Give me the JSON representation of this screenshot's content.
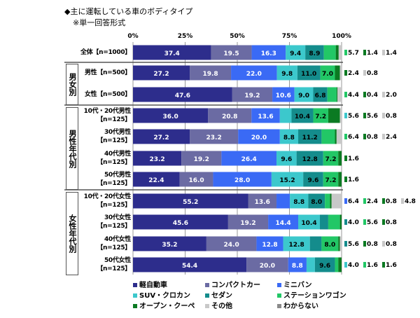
{
  "chart_data": {
    "type": "bar",
    "orientation": "horizontal-stacked-100",
    "title": "◆主に運転している車のボディタイプ",
    "subtitle": "※単一回答形式",
    "xlim": [
      0,
      100
    ],
    "xticks": [
      "0%",
      "25%",
      "50%",
      "75%",
      "100%"
    ],
    "grid": true,
    "legend_position": "bottom",
    "groups": [
      {
        "label": "",
        "rows": [
          0
        ]
      },
      {
        "label": "男女別",
        "rows": [
          1,
          2
        ]
      },
      {
        "label": "男性年代別",
        "rows": [
          3,
          4,
          5,
          6
        ]
      },
      {
        "label": "女性年代別",
        "rows": [
          7,
          8,
          9,
          10
        ]
      }
    ],
    "categories": [
      [
        "全体【n=1000】"
      ],
      [
        "男性【n=500】"
      ],
      [
        "女性【n=500】"
      ],
      [
        "10代・20代男性",
        "【n=125】"
      ],
      [
        "30代男性",
        "【n=125】"
      ],
      [
        "40代男性",
        "【n=125】"
      ],
      [
        "50代男性",
        "【n=125】"
      ],
      [
        "10代・20代女性",
        "【n=125】"
      ],
      [
        "30代女性",
        "【n=125】"
      ],
      [
        "40代女性",
        "【n=125】"
      ],
      [
        "50代女性",
        "【n=125】"
      ]
    ],
    "series": [
      {
        "name": "軽自動車",
        "color": "#2d2d8c",
        "values": [
          37.4,
          27.2,
          47.6,
          36.0,
          27.2,
          23.2,
          22.4,
          55.2,
          45.6,
          35.2,
          54.4
        ]
      },
      {
        "name": "コンパクトカー",
        "color": "#6b6ba3",
        "values": [
          19.5,
          19.8,
          19.2,
          20.8,
          23.2,
          19.2,
          16.0,
          13.6,
          19.2,
          24.0,
          20.0
        ]
      },
      {
        "name": "ミニバン",
        "color": "#3a6af5",
        "values": [
          16.3,
          22.0,
          10.6,
          13.6,
          20.0,
          26.4,
          28.0,
          6.4,
          14.4,
          12.8,
          8.8
        ]
      },
      {
        "name": "SUV・クロカン",
        "color": "#3cc8cc",
        "values": [
          9.4,
          9.8,
          9.0,
          5.6,
          8.8,
          9.6,
          15.2,
          8.8,
          10.4,
          12.8,
          4.0
        ]
      },
      {
        "name": "セダン",
        "color": "#148c8c",
        "values": [
          8.9,
          11.0,
          6.8,
          10.4,
          11.2,
          12.8,
          9.6,
          8.0,
          4.0,
          5.6,
          9.6
        ]
      },
      {
        "name": "ステーションワゴン",
        "color": "#22c766",
        "values": [
          5.7,
          7.0,
          4.4,
          7.2,
          6.4,
          7.2,
          7.2,
          2.4,
          5.6,
          8.0,
          1.6
        ]
      },
      {
        "name": "オープン・クーペ",
        "color": "#0b7a22",
        "values": [
          1.4,
          2.4,
          0.4,
          5.6,
          0.8,
          1.6,
          1.6,
          0.8,
          0.8,
          0.8,
          1.6
        ]
      },
      {
        "name": "その他",
        "color": "#c8c8c8",
        "values": [
          1.4,
          0.8,
          2.0,
          0.8,
          2.4,
          0,
          0,
          4.8,
          0,
          0.8,
          0
        ]
      },
      {
        "name": "わからない",
        "color": "#8a8a8a",
        "values": [
          0,
          0,
          0,
          0,
          0,
          0,
          0,
          0,
          0,
          0,
          0
        ]
      }
    ]
  }
}
